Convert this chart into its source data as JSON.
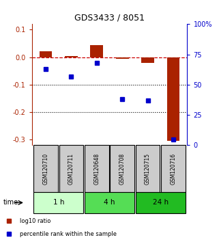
{
  "title": "GDS3433 / 8051",
  "samples": [
    "GSM120710",
    "GSM120711",
    "GSM120648",
    "GSM120708",
    "GSM120715",
    "GSM120716"
  ],
  "log10_ratio": [
    0.022,
    0.005,
    0.045,
    -0.005,
    -0.02,
    -0.305
  ],
  "percentile_rank": [
    63,
    57,
    68,
    38,
    37,
    5
  ],
  "ylim_left": [
    -0.32,
    0.12
  ],
  "ylim_right": [
    0,
    100
  ],
  "bar_width": 0.5,
  "red_color": "#aa2200",
  "blue_color": "#0000cc",
  "background_color": "#ffffff",
  "dashed_line_color": "#cc0000",
  "sample_box_color": "#cccccc",
  "time_groups": [
    {
      "label": "1 h",
      "start": 0,
      "end": 1,
      "color": "#ccffcc"
    },
    {
      "label": "4 h",
      "start": 2,
      "end": 3,
      "color": "#55dd55"
    },
    {
      "label": "24 h",
      "start": 4,
      "end": 5,
      "color": "#22bb22"
    }
  ],
  "yticks_left": [
    0.1,
    0.0,
    -0.1,
    -0.2,
    -0.3
  ],
  "yticks_right": [
    0,
    25,
    50,
    75,
    100
  ],
  "ytick_right_labels": [
    "0",
    "25",
    "50",
    "75",
    "100%"
  ],
  "legend_items": [
    {
      "color": "#aa2200",
      "label": "log10 ratio"
    },
    {
      "color": "#0000cc",
      "label": "percentile rank within the sample"
    }
  ]
}
